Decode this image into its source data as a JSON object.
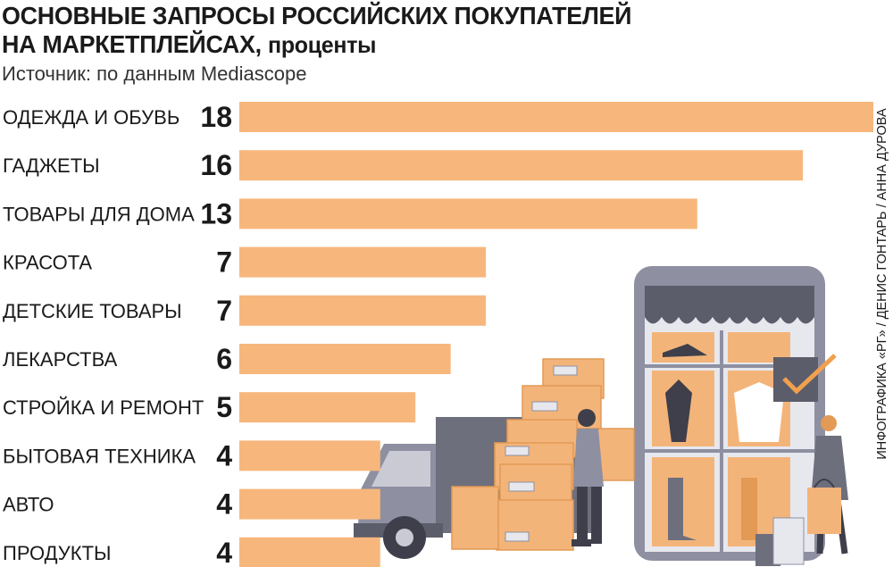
{
  "header": {
    "title_line1": "ОСНОВНЫЕ ЗАПРОСЫ РОССИЙСКИХ ПОКУПАТЕЛЕЙ",
    "title_line2": "НА МАРКЕТПЛЕЙСАХ,",
    "title_unit": "проценты",
    "source": "Источник: по данным Mediascope"
  },
  "credit": "ИНФОГРАФИКА «РГ» / ДЕНИС ГОНТАРЬ / АННА ДУРОВА",
  "colors": {
    "bar": "#f7b77c",
    "text": "#1a1a1a",
    "truck": "#6e6f7d",
    "phone": "#8e8fa1",
    "awning": "#5c5d6a",
    "box": "#f3b47a",
    "accent_check": "#f0a04f"
  },
  "illustration_icons": [
    "truck-icon",
    "smartphone-storefront-icon",
    "cardboard-boxes-icon",
    "courier-person-icon",
    "shopper-woman-icon",
    "checkmark-icon",
    "shopping-bag-icon"
  ],
  "chart_data": {
    "type": "bar",
    "orientation": "horizontal",
    "categories": [
      "ОДЕЖДА И ОБУВЬ",
      "ГАДЖЕТЫ",
      "ТОВАРЫ ДЛЯ ДОМА",
      "КРАСОТА",
      "ДЕТСКИЕ ТОВАРЫ",
      "ЛЕКАРСТВА",
      "СТРОЙКА И РЕМОНТ",
      "БЫТОВАЯ ТЕХНИКА",
      "АВТО",
      "ПРОДУКТЫ"
    ],
    "values": [
      18,
      16,
      13,
      7,
      7,
      6,
      5,
      4,
      4,
      4
    ],
    "value_labels": [
      "18",
      "16",
      "13",
      "7",
      "7",
      "6",
      "5",
      "4",
      "4",
      "4"
    ],
    "xlim": [
      0,
      18
    ],
    "grid": false,
    "legend": "none"
  }
}
